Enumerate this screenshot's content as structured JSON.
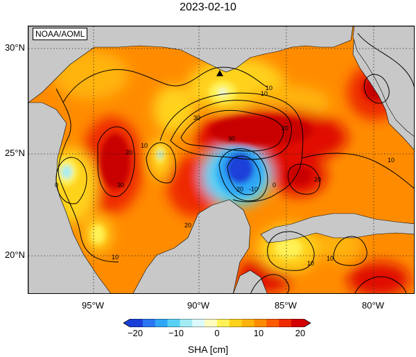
{
  "title": "2023-02-10",
  "credit": "NOAA/AOML",
  "lat_labels": [
    "30°N",
    "25°N",
    "20°N"
  ],
  "lon_labels": [
    "95°W",
    "90°W",
    "85°W",
    "80°W"
  ],
  "contour_labels": [
    "10",
    "0",
    "20",
    "30",
    "10",
    "30",
    "20",
    "30",
    "20",
    "0",
    "-10",
    "20",
    "10",
    "10",
    "10",
    "10",
    "20",
    "10"
  ],
  "colorbar": {
    "title": "SHA [cm]",
    "ticks": [
      "−20",
      "−10",
      "0",
      "10",
      "20"
    ],
    "range": [
      -20,
      20
    ],
    "colors": [
      "#1a3fd8",
      "#2a76f0",
      "#2fa6f5",
      "#57d0f5",
      "#a2ecf5",
      "#ddfafa",
      "#fffcc0",
      "#fff157",
      "#ffd21a",
      "#ffb30c",
      "#ff8b00",
      "#ff5a00",
      "#ee2a00",
      "#d20000"
    ]
  },
  "colors": {
    "land": "#c8c8c8",
    "ocean_base": "#ff8c00"
  },
  "marker": "triangle-marker"
}
